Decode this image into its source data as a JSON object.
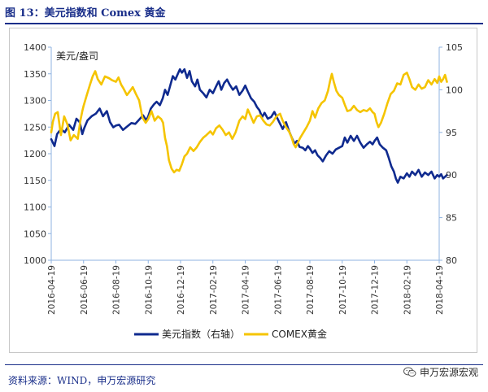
{
  "figure": {
    "title": "图 13：美元指数和 Comex 黄金",
    "source": "资料来源：WIND，申万宏源研究",
    "watermark": "申万宏源宏观",
    "colors": {
      "usd": "#0f2a8f",
      "gold": "#f5c400",
      "axis": "#8fb3e0",
      "text": "#333333",
      "accent": "#1a2f8a"
    }
  },
  "chart_data": {
    "type": "line",
    "unit_label": "美元/盎司",
    "left_axis": {
      "ylim": [
        1000,
        1400
      ],
      "ticks": [
        1000,
        1050,
        1100,
        1150,
        1200,
        1250,
        1300,
        1350,
        1400
      ]
    },
    "right_axis": {
      "ylim": [
        80,
        105
      ],
      "ticks": [
        80,
        85,
        90,
        95,
        100,
        105
      ]
    },
    "x_ticks": [
      "2016-04-19",
      "2016-06-19",
      "2016-08-19",
      "2016-10-19",
      "2016-12-19",
      "2017-02-19",
      "2017-04-19",
      "2017-06-19",
      "2017-08-19",
      "2017-10-19",
      "2017-12-19",
      "2018-02-19",
      "2018-04-19"
    ],
    "series": [
      {
        "name": "美元指数（右轴）",
        "axis": "right",
        "color": "#0f2a8f",
        "points": [
          [
            0,
            94.2
          ],
          [
            0.1,
            93.4
          ],
          [
            0.18,
            94.8
          ],
          [
            0.3,
            95.4
          ],
          [
            0.42,
            95.0
          ],
          [
            0.55,
            95.9
          ],
          [
            0.68,
            95.3
          ],
          [
            0.78,
            96.6
          ],
          [
            0.88,
            96.2
          ],
          [
            0.96,
            94.8
          ],
          [
            1.02,
            95.5
          ],
          [
            1.12,
            96.4
          ],
          [
            1.25,
            96.9
          ],
          [
            1.38,
            97.2
          ],
          [
            1.5,
            97.8
          ],
          [
            1.6,
            96.9
          ],
          [
            1.72,
            97.5
          ],
          [
            1.82,
            96.2
          ],
          [
            1.92,
            95.6
          ],
          [
            2.0,
            95.8
          ],
          [
            2.1,
            95.9
          ],
          [
            2.22,
            95.3
          ],
          [
            2.35,
            95.7
          ],
          [
            2.48,
            96.1
          ],
          [
            2.6,
            96.0
          ],
          [
            2.72,
            96.5
          ],
          [
            2.84,
            97.0
          ],
          [
            2.94,
            96.4
          ],
          [
            3.0,
            96.9
          ],
          [
            3.08,
            97.8
          ],
          [
            3.18,
            98.3
          ],
          [
            3.26,
            98.6
          ],
          [
            3.36,
            98.2
          ],
          [
            3.45,
            99.0
          ],
          [
            3.52,
            100.0
          ],
          [
            3.6,
            99.4
          ],
          [
            3.68,
            100.5
          ],
          [
            3.76,
            101.6
          ],
          [
            3.84,
            101.2
          ],
          [
            3.92,
            101.9
          ],
          [
            3.98,
            102.4
          ],
          [
            4.04,
            102.0
          ],
          [
            4.12,
            102.4
          ],
          [
            4.2,
            101.4
          ],
          [
            4.28,
            102.2
          ],
          [
            4.35,
            101.0
          ],
          [
            4.45,
            100.4
          ],
          [
            4.52,
            101.2
          ],
          [
            4.6,
            100.0
          ],
          [
            4.7,
            99.6
          ],
          [
            4.8,
            99.1
          ],
          [
            4.9,
            100.0
          ],
          [
            5.0,
            99.6
          ],
          [
            5.1,
            100.4
          ],
          [
            5.18,
            101.0
          ],
          [
            5.26,
            100.0
          ],
          [
            5.35,
            100.8
          ],
          [
            5.44,
            101.2
          ],
          [
            5.52,
            100.6
          ],
          [
            5.62,
            100.0
          ],
          [
            5.72,
            100.4
          ],
          [
            5.82,
            99.4
          ],
          [
            5.92,
            99.9
          ],
          [
            6.0,
            100.5
          ],
          [
            6.08,
            99.8
          ],
          [
            6.18,
            99.0
          ],
          [
            6.28,
            98.6
          ],
          [
            6.36,
            98.0
          ],
          [
            6.44,
            97.6
          ],
          [
            6.52,
            96.8
          ],
          [
            6.6,
            97.3
          ],
          [
            6.7,
            96.6
          ],
          [
            6.8,
            96.8
          ],
          [
            6.9,
            97.4
          ],
          [
            7.0,
            96.6
          ],
          [
            7.08,
            96.0
          ],
          [
            7.16,
            95.4
          ],
          [
            7.26,
            96.2
          ],
          [
            7.36,
            95.1
          ],
          [
            7.44,
            94.4
          ],
          [
            7.52,
            93.7
          ],
          [
            7.6,
            94.0
          ],
          [
            7.68,
            93.3
          ],
          [
            7.78,
            93.2
          ],
          [
            7.86,
            92.9
          ],
          [
            7.94,
            93.4
          ],
          [
            8.0,
            93.1
          ],
          [
            8.08,
            92.6
          ],
          [
            8.16,
            92.9
          ],
          [
            8.24,
            92.3
          ],
          [
            8.32,
            92.0
          ],
          [
            8.4,
            91.6
          ],
          [
            8.5,
            92.3
          ],
          [
            8.6,
            92.8
          ],
          [
            8.7,
            92.5
          ],
          [
            8.8,
            93.0
          ],
          [
            8.9,
            93.2
          ],
          [
            9.0,
            93.4
          ],
          [
            9.08,
            94.4
          ],
          [
            9.16,
            93.8
          ],
          [
            9.26,
            94.6
          ],
          [
            9.36,
            94.0
          ],
          [
            9.46,
            94.6
          ],
          [
            9.56,
            93.8
          ],
          [
            9.66,
            93.2
          ],
          [
            9.76,
            93.6
          ],
          [
            9.86,
            93.9
          ],
          [
            9.94,
            93.6
          ],
          [
            10.0,
            94.0
          ],
          [
            10.08,
            94.4
          ],
          [
            10.16,
            93.6
          ],
          [
            10.26,
            93.2
          ],
          [
            10.36,
            92.9
          ],
          [
            10.44,
            92.0
          ],
          [
            10.52,
            91.0
          ],
          [
            10.6,
            90.4
          ],
          [
            10.66,
            89.6
          ],
          [
            10.72,
            89.1
          ],
          [
            10.8,
            89.8
          ],
          [
            10.9,
            89.6
          ],
          [
            11.0,
            90.2
          ],
          [
            11.08,
            89.8
          ],
          [
            11.16,
            90.4
          ],
          [
            11.26,
            90.0
          ],
          [
            11.36,
            90.6
          ],
          [
            11.46,
            89.8
          ],
          [
            11.56,
            90.3
          ],
          [
            11.66,
            90.0
          ],
          [
            11.76,
            90.4
          ],
          [
            11.86,
            89.6
          ],
          [
            11.94,
            90.0
          ],
          [
            12.0,
            89.8
          ],
          [
            12.06,
            90.1
          ],
          [
            12.12,
            89.6
          ],
          [
            12.18,
            89.8
          ],
          [
            12.24,
            90.0
          ]
        ]
      },
      {
        "name": "COMEX黄金",
        "axis": "left",
        "color": "#f5c400",
        "points": [
          [
            0,
            1240
          ],
          [
            0.05,
            1260
          ],
          [
            0.12,
            1275
          ],
          [
            0.2,
            1278
          ],
          [
            0.3,
            1235
          ],
          [
            0.4,
            1270
          ],
          [
            0.5,
            1255
          ],
          [
            0.6,
            1225
          ],
          [
            0.7,
            1235
          ],
          [
            0.82,
            1228
          ],
          [
            0.9,
            1262
          ],
          [
            0.96,
            1280
          ],
          [
            1.0,
            1290
          ],
          [
            1.1,
            1310
          ],
          [
            1.2,
            1330
          ],
          [
            1.28,
            1345
          ],
          [
            1.36,
            1355
          ],
          [
            1.44,
            1340
          ],
          [
            1.55,
            1330
          ],
          [
            1.66,
            1345
          ],
          [
            1.78,
            1342
          ],
          [
            1.88,
            1338
          ],
          [
            2.0,
            1335
          ],
          [
            2.08,
            1343
          ],
          [
            2.16,
            1330
          ],
          [
            2.24,
            1322
          ],
          [
            2.34,
            1310
          ],
          [
            2.44,
            1318
          ],
          [
            2.52,
            1325
          ],
          [
            2.62,
            1312
          ],
          [
            2.72,
            1300
          ],
          [
            2.82,
            1268
          ],
          [
            2.92,
            1258
          ],
          [
            3.0,
            1265
          ],
          [
            3.1,
            1280
          ],
          [
            3.2,
            1262
          ],
          [
            3.3,
            1270
          ],
          [
            3.4,
            1265
          ],
          [
            3.46,
            1258
          ],
          [
            3.52,
            1230
          ],
          [
            3.58,
            1214
          ],
          [
            3.64,
            1188
          ],
          [
            3.72,
            1172
          ],
          [
            3.8,
            1165
          ],
          [
            3.88,
            1170
          ],
          [
            3.96,
            1168
          ],
          [
            4.04,
            1180
          ],
          [
            4.12,
            1195
          ],
          [
            4.2,
            1200
          ],
          [
            4.3,
            1212
          ],
          [
            4.4,
            1205
          ],
          [
            4.5,
            1212
          ],
          [
            4.6,
            1222
          ],
          [
            4.7,
            1230
          ],
          [
            4.8,
            1235
          ],
          [
            4.92,
            1242
          ],
          [
            5.0,
            1236
          ],
          [
            5.1,
            1248
          ],
          [
            5.2,
            1253
          ],
          [
            5.3,
            1245
          ],
          [
            5.4,
            1235
          ],
          [
            5.5,
            1240
          ],
          [
            5.6,
            1228
          ],
          [
            5.7,
            1240
          ],
          [
            5.82,
            1262
          ],
          [
            5.92,
            1270
          ],
          [
            6.0,
            1265
          ],
          [
            6.08,
            1283
          ],
          [
            6.16,
            1272
          ],
          [
            6.26,
            1258
          ],
          [
            6.36,
            1270
          ],
          [
            6.46,
            1272
          ],
          [
            6.56,
            1262
          ],
          [
            6.66,
            1255
          ],
          [
            6.76,
            1253
          ],
          [
            6.86,
            1260
          ],
          [
            6.94,
            1268
          ],
          [
            7.0,
            1272
          ],
          [
            7.08,
            1275
          ],
          [
            7.16,
            1262
          ],
          [
            7.26,
            1250
          ],
          [
            7.36,
            1241
          ],
          [
            7.44,
            1230
          ],
          [
            7.5,
            1218
          ],
          [
            7.56,
            1212
          ],
          [
            7.62,
            1220
          ],
          [
            7.7,
            1230
          ],
          [
            7.8,
            1240
          ],
          [
            7.9,
            1250
          ],
          [
            8.0,
            1262
          ],
          [
            8.08,
            1280
          ],
          [
            8.16,
            1268
          ],
          [
            8.26,
            1285
          ],
          [
            8.36,
            1295
          ],
          [
            8.46,
            1300
          ],
          [
            8.56,
            1318
          ],
          [
            8.62,
            1335
          ],
          [
            8.68,
            1350
          ],
          [
            8.74,
            1335
          ],
          [
            8.82,
            1318
          ],
          [
            8.9,
            1310
          ],
          [
            9.0,
            1305
          ],
          [
            9.08,
            1292
          ],
          [
            9.16,
            1280
          ],
          [
            9.26,
            1282
          ],
          [
            9.36,
            1290
          ],
          [
            9.46,
            1282
          ],
          [
            9.56,
            1278
          ],
          [
            9.66,
            1282
          ],
          [
            9.76,
            1280
          ],
          [
            9.86,
            1285
          ],
          [
            9.94,
            1278
          ],
          [
            10.0,
            1275
          ],
          [
            10.06,
            1260
          ],
          [
            10.12,
            1250
          ],
          [
            10.2,
            1258
          ],
          [
            10.3,
            1275
          ],
          [
            10.4,
            1295
          ],
          [
            10.5,
            1312
          ],
          [
            10.6,
            1318
          ],
          [
            10.7,
            1332
          ],
          [
            10.8,
            1330
          ],
          [
            10.9,
            1348
          ],
          [
            11.0,
            1352
          ],
          [
            11.08,
            1340
          ],
          [
            11.16,
            1325
          ],
          [
            11.26,
            1320
          ],
          [
            11.36,
            1330
          ],
          [
            11.46,
            1322
          ],
          [
            11.56,
            1325
          ],
          [
            11.66,
            1338
          ],
          [
            11.76,
            1330
          ],
          [
            11.86,
            1340
          ],
          [
            11.94,
            1333
          ],
          [
            12.0,
            1345
          ],
          [
            12.06,
            1335
          ],
          [
            12.12,
            1340
          ],
          [
            12.18,
            1348
          ],
          [
            12.24,
            1335
          ]
        ]
      }
    ]
  }
}
